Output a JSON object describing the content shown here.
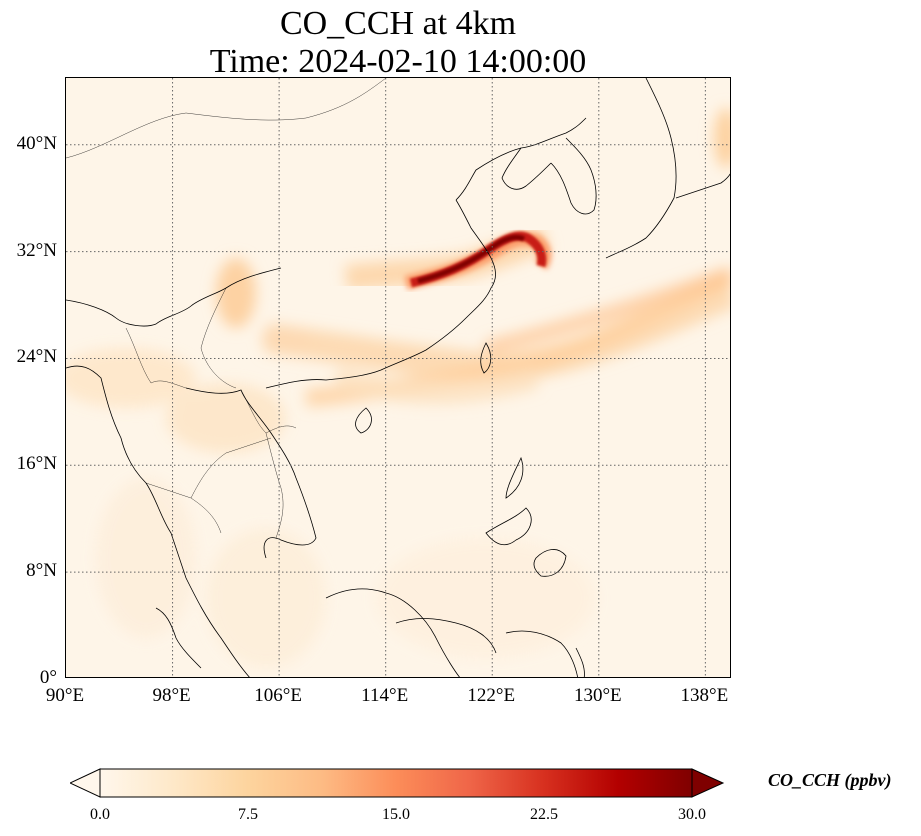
{
  "title": {
    "line1": "CO_CCH at 4km",
    "line2": "Time: 2024-02-10 14:00:00"
  },
  "map": {
    "projection": "PlateCarree",
    "extent_lon": [
      90,
      140
    ],
    "extent_lat": [
      0,
      45
    ],
    "gridlines": "dotted grey",
    "lat_ticks": [
      {
        "value": 0,
        "label": "0°"
      },
      {
        "value": 8,
        "label": "8°N"
      },
      {
        "value": 16,
        "label": "16°N"
      },
      {
        "value": 24,
        "label": "24°N"
      },
      {
        "value": 32,
        "label": "32°N"
      },
      {
        "value": 40,
        "label": "40°N"
      }
    ],
    "lon_ticks": [
      {
        "value": 90,
        "label": "90°E"
      },
      {
        "value": 98,
        "label": "98°E"
      },
      {
        "value": 106,
        "label": "106°E"
      },
      {
        "value": 114,
        "label": "114°E"
      },
      {
        "value": 122,
        "label": "122°E"
      },
      {
        "value": 130,
        "label": "130°E"
      },
      {
        "value": 138,
        "label": "138°E"
      }
    ],
    "plume_color_max": "#7f0000",
    "plume_color_mid": "#e34a33",
    "plume_color_low": "#fdd49e",
    "coastline_color": "#000000"
  },
  "colorbar": {
    "label": "CO_CCH (ppbv)",
    "min": 0.0,
    "max": 30.0,
    "extend": "both",
    "ticks": [
      "0.0",
      "7.5",
      "15.0",
      "22.5",
      "30.0"
    ],
    "colormap": "OrRd",
    "colors": [
      "#fff7ec",
      "#fee8c8",
      "#fdd49e",
      "#fdbb84",
      "#fc8d59",
      "#ef6548",
      "#d7301f",
      "#b30000",
      "#7f0000"
    ]
  }
}
